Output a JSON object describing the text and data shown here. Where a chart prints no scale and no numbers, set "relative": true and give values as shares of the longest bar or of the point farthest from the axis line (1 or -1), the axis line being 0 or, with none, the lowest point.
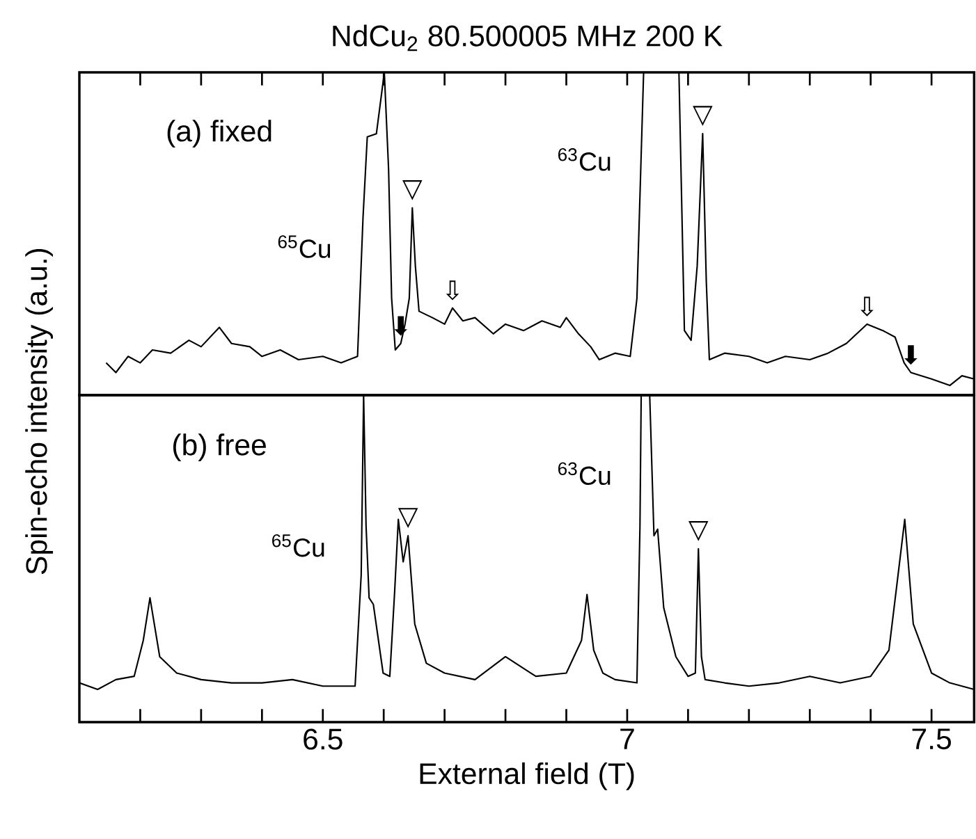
{
  "chart_data": [
    {
      "type": "line",
      "title": "NdCu$_{2}$  80.500005 MHz  200 K",
      "ylabel": "Spin-echo intensity (a.u.)",
      "relative": true,
      "xlim": [
        6.1,
        7.57
      ],
      "tick_labels": false,
      "xticks": [
        {
          "value": 6.2,
          "label": null
        },
        {
          "value": 6.3,
          "label": null
        },
        {
          "value": 6.4,
          "label": null
        },
        {
          "value": 6.5,
          "label": null
        },
        {
          "value": 6.6,
          "label": null
        },
        {
          "value": 6.7,
          "label": null
        },
        {
          "value": 6.8,
          "label": null
        },
        {
          "value": 6.9,
          "label": null
        },
        {
          "value": 7,
          "label": null
        },
        {
          "value": 7.1,
          "label": null
        },
        {
          "value": 7.2,
          "label": null
        },
        {
          "value": 7.3,
          "label": null
        },
        {
          "value": 7.4,
          "label": null
        },
        {
          "value": 7.5,
          "label": null
        }
      ],
      "annotations": [
        "(a)  fixed",
        "$^{65}$Cu",
        "$^{63}$Cu",
        {
          "text": "▽",
          "x": 6.647,
          "y": 0.58
        },
        {
          "text": "▽",
          "x": 7.124,
          "y": 0.81
        },
        {
          "text": "⬇",
          "x": 6.628,
          "y": 0.16
        },
        {
          "text": "⇩",
          "x": 6.713,
          "y": 0.27
        },
        {
          "text": "⇩",
          "x": 7.394,
          "y": 0.22
        },
        {
          "text": "⬇",
          "x": 7.466,
          "y": 0.07
        }
      ],
      "series": [
        {
          "color": "#000000",
          "x": [
            6.144,
            6.16,
            6.18,
            6.2,
            6.22,
            6.25,
            6.28,
            6.3,
            6.33,
            6.35,
            6.38,
            6.4,
            6.43,
            6.46,
            6.5,
            6.53,
            6.557,
            6.566,
            6.573,
            6.588,
            6.601,
            6.608,
            6.613,
            6.619,
            6.628,
            6.635,
            6.642,
            6.647,
            6.652,
            6.658,
            6.68,
            6.7,
            6.713,
            6.73,
            6.75,
            6.78,
            6.8,
            6.83,
            6.86,
            6.89,
            6.9,
            6.92,
            6.94,
            6.954,
            6.98,
            7.005,
            7.016,
            7.027,
            7.085,
            7.094,
            7.105,
            7.115,
            7.124,
            7.13,
            7.135,
            7.16,
            7.2,
            7.23,
            7.26,
            7.3,
            7.33,
            7.36,
            7.394,
            7.42,
            7.44,
            7.455,
            7.466,
            7.5,
            7.53,
            7.55,
            7.57
          ],
          "values": [
            0.1,
            0.07,
            0.12,
            0.1,
            0.14,
            0.13,
            0.17,
            0.15,
            0.21,
            0.16,
            0.15,
            0.12,
            0.14,
            0.11,
            0.12,
            0.1,
            0.12,
            0.55,
            0.8,
            0.81,
            1.0,
            0.7,
            0.3,
            0.14,
            0.16,
            0.22,
            0.3,
            0.58,
            0.4,
            0.26,
            0.24,
            0.22,
            0.27,
            0.23,
            0.24,
            0.19,
            0.22,
            0.2,
            0.23,
            0.21,
            0.24,
            0.19,
            0.15,
            0.11,
            0.13,
            0.12,
            0.3,
            1.0,
            1.0,
            0.2,
            0.17,
            0.4,
            0.81,
            0.35,
            0.11,
            0.13,
            0.12,
            0.1,
            0.12,
            0.11,
            0.13,
            0.16,
            0.22,
            0.2,
            0.18,
            0.1,
            0.07,
            0.05,
            0.03,
            0.06,
            0.05
          ]
        }
      ]
    },
    {
      "type": "line",
      "xlabel": "External field (T)",
      "relative": true,
      "xlim": [
        6.1,
        7.57
      ],
      "tick_labels": "x",
      "xticks": [
        {
          "value": 6.2,
          "label": null
        },
        {
          "value": 6.3,
          "label": null
        },
        {
          "value": 6.4,
          "label": null
        },
        6.5,
        {
          "value": 6.6,
          "label": null
        },
        {
          "value": 6.7,
          "label": null
        },
        {
          "value": 6.8,
          "label": null
        },
        {
          "value": 6.9,
          "label": null
        },
        7,
        {
          "value": 7.1,
          "label": null
        },
        {
          "value": 7.2,
          "label": null
        },
        {
          "value": 7.3,
          "label": null
        },
        {
          "value": 7.4,
          "label": null
        },
        7.5
      ],
      "annotations": [
        "(b)  free",
        "$^{65}$Cu",
        "$^{63}$Cu",
        {
          "text": "▽",
          "x": 6.64,
          "y": 0.57
        },
        {
          "text": "▽",
          "x": 7.117,
          "y": 0.53
        }
      ],
      "series": [
        {
          "color": "#000000",
          "x": [
            6.1,
            6.13,
            6.16,
            6.19,
            6.205,
            6.216,
            6.232,
            6.26,
            6.3,
            6.35,
            6.4,
            6.45,
            6.5,
            6.553,
            6.563,
            6.567,
            6.571,
            6.576,
            6.583,
            6.599,
            6.61,
            6.618,
            6.624,
            6.632,
            6.64,
            6.651,
            6.67,
            6.7,
            6.75,
            6.8,
            6.85,
            6.9,
            6.925,
            6.934,
            6.945,
            6.96,
            6.98,
            7.016,
            7.021,
            7.023,
            7.037,
            7.044,
            7.05,
            7.06,
            7.08,
            7.1,
            7.112,
            7.117,
            7.122,
            7.128,
            7.16,
            7.2,
            7.25,
            7.3,
            7.35,
            7.4,
            7.43,
            7.445,
            7.456,
            7.47,
            7.5,
            7.53,
            7.57
          ],
          "values": [
            0.12,
            0.1,
            0.13,
            0.14,
            0.25,
            0.38,
            0.2,
            0.15,
            0.13,
            0.12,
            0.12,
            0.13,
            0.11,
            0.11,
            0.45,
            1.0,
            0.6,
            0.38,
            0.36,
            0.15,
            0.14,
            0.4,
            0.62,
            0.49,
            0.57,
            0.3,
            0.18,
            0.15,
            0.13,
            0.2,
            0.14,
            0.15,
            0.25,
            0.39,
            0.22,
            0.15,
            0.13,
            0.12,
            0.6,
            1.0,
            1.0,
            0.57,
            0.59,
            0.35,
            0.2,
            0.14,
            0.15,
            0.53,
            0.2,
            0.13,
            0.12,
            0.11,
            0.12,
            0.14,
            0.12,
            0.14,
            0.22,
            0.45,
            0.62,
            0.3,
            0.15,
            0.12,
            0.1
          ]
        }
      ]
    }
  ]
}
